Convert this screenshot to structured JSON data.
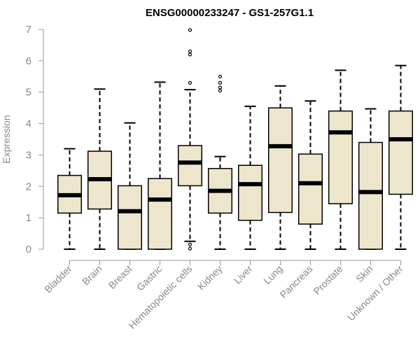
{
  "chart_data": {
    "type": "boxplot",
    "title": "ENSG00000233247 - GS1-257G1.1",
    "xlabel": "",
    "ylabel": "Expression",
    "ylim": [
      0,
      7
    ],
    "yticks": [
      0,
      1,
      2,
      3,
      4,
      5,
      6,
      7
    ],
    "grid": false,
    "box_color": "#ede6cc",
    "categories": [
      "Bladder",
      "Brain",
      "Breast",
      "Gastric",
      "Hematopoietic cells",
      "Kidney",
      "Liver",
      "Lung",
      "Pancreas",
      "Prostate",
      "Skin",
      "Unknown / Other"
    ],
    "boxes": [
      {
        "whisker_low": 0.0,
        "q1": 1.15,
        "median": 1.72,
        "q3": 2.35,
        "whisker_high": 3.2,
        "outliers": []
      },
      {
        "whisker_low": 0.0,
        "q1": 1.28,
        "median": 2.23,
        "q3": 3.12,
        "whisker_high": 5.1,
        "outliers": []
      },
      {
        "whisker_low": 0.0,
        "q1": 0.0,
        "median": 1.21,
        "q3": 2.02,
        "whisker_high": 4.02,
        "outliers": []
      },
      {
        "whisker_low": 0.0,
        "q1": 0.0,
        "median": 1.58,
        "q3": 2.25,
        "whisker_high": 5.32,
        "outliers": []
      },
      {
        "whisker_low": 0.25,
        "q1": 2.02,
        "median": 2.76,
        "q3": 3.3,
        "whisker_high": 5.08,
        "outliers": [
          0.02,
          0.15,
          5.3,
          6.2,
          6.3,
          6.98
        ]
      },
      {
        "whisker_low": 0.0,
        "q1": 1.15,
        "median": 1.86,
        "q3": 2.57,
        "whisker_high": 2.95,
        "outliers": [
          5.05,
          5.15,
          5.3,
          5.5
        ]
      },
      {
        "whisker_low": 0.0,
        "q1": 0.92,
        "median": 2.07,
        "q3": 2.67,
        "whisker_high": 4.55,
        "outliers": []
      },
      {
        "whisker_low": 0.0,
        "q1": 1.17,
        "median": 3.28,
        "q3": 4.5,
        "whisker_high": 5.2,
        "outliers": []
      },
      {
        "whisker_low": 0.0,
        "q1": 0.8,
        "median": 2.1,
        "q3": 3.03,
        "whisker_high": 4.72,
        "outliers": []
      },
      {
        "whisker_low": 0.0,
        "q1": 1.45,
        "median": 3.72,
        "q3": 4.4,
        "whisker_high": 5.7,
        "outliers": []
      },
      {
        "whisker_low": 0.0,
        "q1": 0.0,
        "median": 1.82,
        "q3": 3.4,
        "whisker_high": 4.47,
        "outliers": []
      },
      {
        "whisker_low": 0.0,
        "q1": 1.75,
        "median": 3.5,
        "q3": 4.4,
        "whisker_high": 5.85,
        "outliers": []
      }
    ]
  }
}
